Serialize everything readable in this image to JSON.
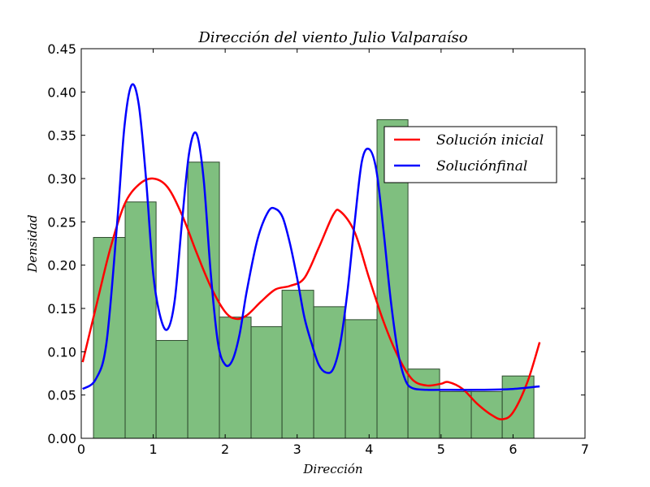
{
  "chart_data": {
    "type": "histogram",
    "title": "Dirección del viento Julio Valparaíso",
    "xlabel": "Dirección",
    "ylabel": "Densidad",
    "xlim": [
      0,
      7
    ],
    "ylim": [
      0,
      0.45
    ],
    "x_ticks": [
      "0",
      "1",
      "2",
      "3",
      "4",
      "5",
      "6",
      "7"
    ],
    "y_ticks": [
      "0.00",
      "0.05",
      "0.10",
      "0.15",
      "0.20",
      "0.25",
      "0.30",
      "0.35",
      "0.40",
      "0.45"
    ],
    "histogram": {
      "bin_edges": [
        0.17,
        0.61,
        1.04,
        1.48,
        1.92,
        2.36,
        2.79,
        3.23,
        3.67,
        4.11,
        4.54,
        4.98,
        5.42,
        5.85,
        6.29
      ],
      "densities": [
        0.232,
        0.273,
        0.113,
        0.319,
        0.14,
        0.129,
        0.171,
        0.152,
        0.137,
        0.368,
        0.08,
        0.054,
        0.054,
        0.072
      ],
      "color": "#7fbf7f",
      "edge_color": "#2e4a2e"
    },
    "series": [
      {
        "name": "Solución inicial",
        "color": "#ff0000",
        "x": [
          0.02,
          0.2,
          0.4,
          0.6,
          0.8,
          1.0,
          1.2,
          1.4,
          1.6,
          1.8,
          2.0,
          2.15,
          2.3,
          2.5,
          2.7,
          2.9,
          3.1,
          3.3,
          3.5,
          3.6,
          3.8,
          4.0,
          4.2,
          4.4,
          4.6,
          4.8,
          5.0,
          5.1,
          5.3,
          5.5,
          5.7,
          5.85,
          6.0,
          6.2,
          6.37
        ],
        "y": [
          0.088,
          0.15,
          0.218,
          0.27,
          0.293,
          0.3,
          0.29,
          0.258,
          0.215,
          0.175,
          0.146,
          0.138,
          0.142,
          0.158,
          0.172,
          0.176,
          0.185,
          0.22,
          0.258,
          0.262,
          0.238,
          0.185,
          0.135,
          0.095,
          0.068,
          0.061,
          0.063,
          0.065,
          0.057,
          0.04,
          0.027,
          0.022,
          0.03,
          0.065,
          0.111
        ]
      },
      {
        "name": "Soluciónfinal",
        "color": "#0000ff",
        "x": [
          0.02,
          0.2,
          0.35,
          0.5,
          0.6,
          0.7,
          0.8,
          0.9,
          1.0,
          1.1,
          1.2,
          1.3,
          1.4,
          1.5,
          1.6,
          1.7,
          1.8,
          1.9,
          2.0,
          2.1,
          2.2,
          2.3,
          2.45,
          2.6,
          2.7,
          2.8,
          2.9,
          3.0,
          3.1,
          3.2,
          3.3,
          3.4,
          3.5,
          3.6,
          3.7,
          3.8,
          3.9,
          4.0,
          4.1,
          4.2,
          4.3,
          4.4,
          4.5,
          4.6,
          4.8,
          5.0,
          5.5,
          6.0,
          6.37
        ],
        "y": [
          0.057,
          0.068,
          0.11,
          0.25,
          0.36,
          0.408,
          0.385,
          0.3,
          0.19,
          0.14,
          0.126,
          0.16,
          0.25,
          0.33,
          0.352,
          0.3,
          0.19,
          0.11,
          0.085,
          0.09,
          0.12,
          0.17,
          0.23,
          0.262,
          0.265,
          0.255,
          0.225,
          0.185,
          0.14,
          0.11,
          0.085,
          0.076,
          0.08,
          0.11,
          0.17,
          0.25,
          0.32,
          0.334,
          0.31,
          0.24,
          0.16,
          0.1,
          0.068,
          0.058,
          0.056,
          0.056,
          0.056,
          0.057,
          0.06
        ]
      }
    ],
    "legend_position": "upper-right"
  }
}
